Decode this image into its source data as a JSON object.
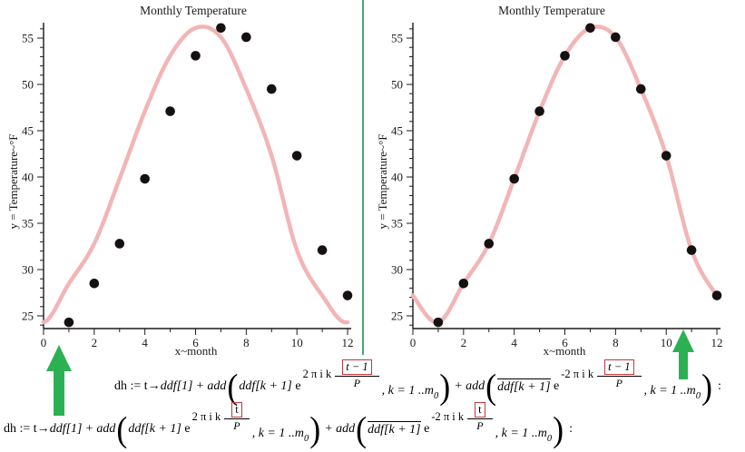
{
  "colors": {
    "curve": "#f2b5b5",
    "points": "#151111",
    "divider_green": "#46a876",
    "arrow_green": "#2bb153",
    "highlight_box_red": "#c03a3a",
    "axis": "#1a1a1a"
  },
  "chart_data": [
    {
      "type": "scatter",
      "title": "Monthly Temperature",
      "xlabel": "x~month",
      "ylabel": "y = Temperature~°F",
      "x": [
        1,
        2,
        3,
        4,
        5,
        6,
        7,
        8,
        9,
        10,
        11,
        12
      ],
      "values": [
        24.3,
        28.5,
        32.8,
        39.8,
        47.1,
        53.1,
        56.1,
        55.1,
        49.5,
        42.3,
        32.1,
        27.2
      ],
      "curve": "periodic Fourier fit",
      "curve_shift_months": -1,
      "curve_note": "fit curve plotted with t instead of t-1: shifted one month left of data",
      "xlim": [
        0,
        12
      ],
      "ylim": [
        23.6,
        57.5
      ],
      "x_major_ticks": [
        0,
        2,
        4,
        6,
        8,
        10,
        12
      ],
      "y_major_ticks": [
        25,
        30,
        35,
        40,
        45,
        50,
        55
      ],
      "grid": false,
      "legend": "none",
      "arrow_x_month": 0.6
    },
    {
      "type": "scatter",
      "title": "Monthly Temperature",
      "xlabel": "x~month",
      "ylabel": "y = Temperature~°F",
      "x": [
        1,
        2,
        3,
        4,
        5,
        6,
        7,
        8,
        9,
        10,
        11,
        12
      ],
      "values": [
        24.3,
        28.5,
        32.8,
        39.8,
        47.1,
        53.1,
        56.1,
        55.1,
        49.5,
        42.3,
        32.1,
        27.2
      ],
      "curve": "periodic Fourier fit",
      "curve_shift_months": 0,
      "curve_note": "corrected fit with t-1 passes through the data points",
      "xlim": [
        0,
        12
      ],
      "ylim": [
        23.6,
        57.5
      ],
      "x_major_ticks": [
        0,
        2,
        4,
        6,
        8,
        10,
        12
      ],
      "y_major_ticks": [
        25,
        30,
        35,
        40,
        45,
        50,
        55
      ],
      "grid": false,
      "legend": "none",
      "arrow_x_month": 10.6
    }
  ],
  "formulas": [
    {
      "lhs": "dh := t→",
      "t1": "ddf[1]",
      "p1": "+",
      "add1": "add",
      "b1": "ddf[k + 1]",
      "e1": " e",
      "x1": "2 π i k",
      "v1": "t − 1",
      "d1": "P",
      "r1": ", k = 1 ..m",
      "rs1": "0",
      "p2": "+",
      "add2": "add",
      "b2": "ddf[k + 1]",
      "e2": " e",
      "x2": "-2 π i k",
      "v2": "t − 1",
      "d2": "P",
      "r2": ", k = 1 ..m",
      "rs2": "0",
      "end": ":"
    },
    {
      "lhs": "dh := t→",
      "t1": "ddf[1]",
      "p1": "+",
      "add1": "add",
      "b1": "ddf[k + 1]",
      "e1": " e",
      "x1": "2 π i k",
      "v1": "t",
      "d1": "P",
      "r1": ", k = 1 ..m",
      "rs1": "0",
      "p2": "+",
      "add2": "add",
      "b2": "ddf[k + 1]",
      "e2": " e",
      "x2": "-2 π i k",
      "v2": "t",
      "d2": "P",
      "r2": ", k = 1 ..m",
      "rs2": "0",
      "end": ":"
    }
  ]
}
